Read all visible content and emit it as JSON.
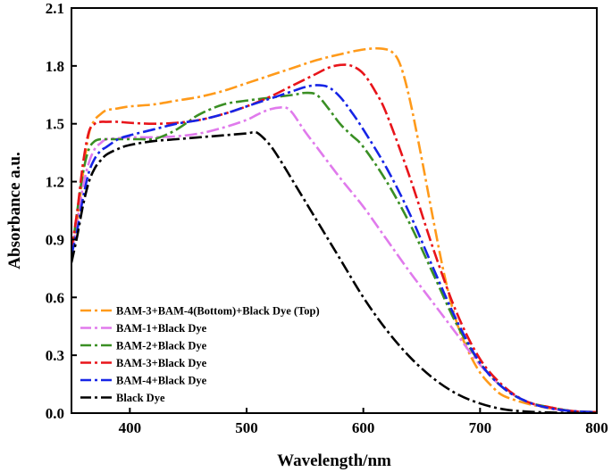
{
  "chart_data": {
    "type": "line",
    "title": "",
    "xlabel": "Wavelength/nm",
    "ylabel": "Absorbance a.u.",
    "xlim": [
      350,
      800
    ],
    "ylim": [
      0,
      2.1
    ],
    "xticks": [
      400,
      500,
      600,
      700,
      800
    ],
    "xtick_labels": [
      "400",
      "500",
      "600",
      "700",
      "800"
    ],
    "yticks": [
      0.0,
      0.3,
      0.6,
      0.9,
      1.2,
      1.5,
      1.8,
      2.1
    ],
    "ytick_labels": [
      "0.0",
      "0.3",
      "0.6",
      "0.9",
      "1.2",
      "1.5",
      "1.8",
      "2.1"
    ],
    "legend_position": "bottom-left",
    "series": [
      {
        "name": "BAM-3+BAM-4(Bottom)+Black Dye (Top)",
        "color": "#ff9a1a",
        "x": [
          350,
          355,
          360,
          365,
          370,
          375,
          380,
          390,
          400,
          420,
          440,
          460,
          480,
          500,
          520,
          540,
          560,
          580,
          600,
          615,
          625,
          632,
          640,
          650,
          660,
          670,
          680,
          690,
          700,
          710,
          720,
          740,
          760,
          780,
          800
        ],
        "y": [
          0.85,
          1.0,
          1.25,
          1.45,
          1.52,
          1.55,
          1.57,
          1.58,
          1.59,
          1.6,
          1.62,
          1.64,
          1.67,
          1.71,
          1.75,
          1.79,
          1.83,
          1.86,
          1.885,
          1.89,
          1.87,
          1.8,
          1.62,
          1.32,
          1.0,
          0.7,
          0.47,
          0.32,
          0.21,
          0.14,
          0.09,
          0.05,
          0.025,
          0.01,
          0.005
        ]
      },
      {
        "name": "BAM-1+Black Dye",
        "color": "#e07aec",
        "x": [
          350,
          355,
          360,
          365,
          370,
          375,
          380,
          390,
          400,
          420,
          440,
          460,
          480,
          500,
          510,
          520,
          530,
          535,
          540,
          550,
          560,
          580,
          600,
          620,
          640,
          660,
          680,
          700,
          720,
          740,
          760,
          780,
          800
        ],
        "y": [
          0.83,
          1.0,
          1.18,
          1.3,
          1.37,
          1.4,
          1.42,
          1.425,
          1.43,
          1.43,
          1.435,
          1.45,
          1.48,
          1.52,
          1.55,
          1.575,
          1.585,
          1.58,
          1.55,
          1.46,
          1.38,
          1.22,
          1.07,
          0.9,
          0.73,
          0.57,
          0.41,
          0.25,
          0.13,
          0.06,
          0.025,
          0.01,
          0.005
        ]
      },
      {
        "name": "BAM-2+Black Dye",
        "color": "#3a8f24",
        "x": [
          350,
          355,
          360,
          365,
          370,
          375,
          380,
          390,
          400,
          410,
          420,
          430,
          440,
          450,
          460,
          480,
          500,
          520,
          540,
          550,
          560,
          570,
          580,
          590,
          600,
          620,
          640,
          660,
          680,
          700,
          720,
          740,
          760,
          780,
          800
        ],
        "y": [
          0.82,
          1.05,
          1.25,
          1.37,
          1.41,
          1.42,
          1.42,
          1.42,
          1.42,
          1.42,
          1.42,
          1.44,
          1.47,
          1.51,
          1.55,
          1.6,
          1.62,
          1.635,
          1.65,
          1.66,
          1.65,
          1.58,
          1.5,
          1.44,
          1.38,
          1.2,
          0.98,
          0.72,
          0.46,
          0.26,
          0.13,
          0.06,
          0.03,
          0.01,
          0.005
        ]
      },
      {
        "name": "BAM-3+Black Dye",
        "color": "#e8141a",
        "x": [
          350,
          355,
          360,
          365,
          370,
          375,
          380,
          390,
          400,
          420,
          440,
          460,
          480,
          500,
          520,
          540,
          560,
          570,
          580,
          590,
          600,
          610,
          620,
          640,
          660,
          680,
          700,
          720,
          740,
          760,
          780,
          800
        ],
        "y": [
          0.85,
          1.05,
          1.3,
          1.46,
          1.5,
          1.51,
          1.51,
          1.51,
          1.505,
          1.5,
          1.505,
          1.52,
          1.55,
          1.59,
          1.64,
          1.7,
          1.76,
          1.79,
          1.805,
          1.8,
          1.76,
          1.67,
          1.55,
          1.22,
          0.85,
          0.52,
          0.28,
          0.14,
          0.06,
          0.03,
          0.01,
          0.005
        ]
      },
      {
        "name": "BAM-4+Black Dye",
        "color": "#1624e6",
        "x": [
          350,
          355,
          360,
          365,
          370,
          375,
          380,
          390,
          400,
          420,
          440,
          460,
          480,
          500,
          520,
          540,
          550,
          560,
          570,
          580,
          590,
          600,
          620,
          640,
          660,
          680,
          700,
          720,
          740,
          760,
          780,
          800
        ],
        "y": [
          0.82,
          0.95,
          1.12,
          1.25,
          1.32,
          1.36,
          1.38,
          1.42,
          1.44,
          1.47,
          1.5,
          1.52,
          1.55,
          1.59,
          1.63,
          1.67,
          1.69,
          1.7,
          1.69,
          1.64,
          1.56,
          1.47,
          1.27,
          1.03,
          0.75,
          0.48,
          0.26,
          0.13,
          0.06,
          0.025,
          0.01,
          0.005
        ]
      },
      {
        "name": "Black Dye",
        "color": "#000000",
        "x": [
          350,
          355,
          360,
          365,
          370,
          375,
          380,
          390,
          400,
          420,
          440,
          460,
          480,
          500,
          505,
          510,
          520,
          530,
          540,
          560,
          580,
          600,
          620,
          640,
          660,
          680,
          700,
          720,
          740,
          760,
          780,
          800
        ],
        "y": [
          0.78,
          0.92,
          1.08,
          1.2,
          1.27,
          1.31,
          1.34,
          1.37,
          1.39,
          1.41,
          1.42,
          1.43,
          1.44,
          1.45,
          1.455,
          1.45,
          1.39,
          1.3,
          1.2,
          1.0,
          0.8,
          0.6,
          0.43,
          0.29,
          0.18,
          0.1,
          0.05,
          0.02,
          0.008,
          0.003,
          0.001,
          0.0
        ]
      }
    ]
  }
}
